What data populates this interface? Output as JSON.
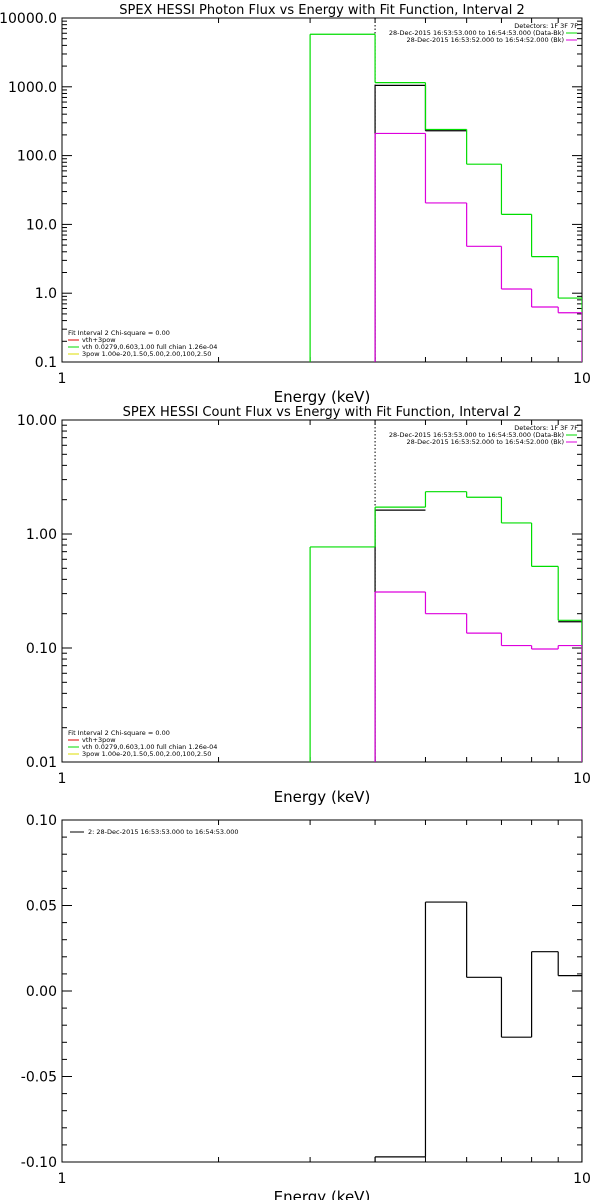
{
  "chart_data": [
    {
      "type": "line",
      "title": "SPEX HESSI Photon Flux vs Energy with Fit Function, Interval 2",
      "xlabel": "Energy (keV)",
      "ylabel": "",
      "x_scale": "log",
      "y_scale": "log",
      "xlim": [
        1,
        10
      ],
      "ylim": [
        0.1,
        10000
      ],
      "xticks": [
        "1",
        "10"
      ],
      "yticks": [
        {
          "value": 0.1,
          "label": "0.1"
        },
        {
          "value": 1,
          "label": "1.0"
        },
        {
          "value": 10,
          "label": "10.0"
        },
        {
          "value": 100,
          "label": "100.0"
        },
        {
          "value": 1000,
          "label": "1000.0"
        },
        {
          "value": 10000,
          "label": "10000.0"
        }
      ],
      "vline": 4.0,
      "legend_topright": [
        "Detectors: 1F 3F 7F",
        "28-Dec-2015 16:53:53.000 to 16:54:53.000 (Data-Bk)",
        "28-Dec-2015 16:53:52.000 to 16:54:52.000 (Bk)"
      ],
      "legend_bottomleft": [
        "Fit Interval 2   Chi-square = 0.00",
        "vth+3pow",
        "vth 0.0279,0.603,1.00  full chian 1.26e-04",
        "3pow 1.00e-20,1.50,5.00,2.00,100,2.50"
      ],
      "series": [
        {
          "color": "#000000",
          "edges": [
            4.0,
            5.0,
            6.0,
            7.0,
            8.0,
            9.0,
            10.0
          ],
          "values": [
            1050,
            230,
            null,
            null,
            null,
            null
          ]
        },
        {
          "color": "#00dd00",
          "edges": [
            3.0,
            4.0,
            5.0,
            6.0,
            7.0,
            8.0,
            9.0,
            10.0
          ],
          "values": [
            5800,
            1150,
            240,
            75,
            14,
            3.4,
            0.85
          ]
        },
        {
          "color": "#dd00dd",
          "edges": [
            4.0,
            5.0,
            6.0,
            7.0,
            8.0,
            9.0,
            10.0
          ],
          "values": [
            210,
            20.5,
            4.8,
            1.15,
            0.63,
            0.52
          ]
        }
      ]
    },
    {
      "type": "line",
      "title": "SPEX HESSI Count Flux vs Energy with Fit Function, Interval 2",
      "xlabel": "Energy (keV)",
      "ylabel": "",
      "x_scale": "log",
      "y_scale": "log",
      "xlim": [
        1,
        10
      ],
      "ylim": [
        0.01,
        10
      ],
      "xticks": [
        "1",
        "10"
      ],
      "yticks": [
        {
          "value": 0.01,
          "label": "0.01"
        },
        {
          "value": 0.1,
          "label": "0.10"
        },
        {
          "value": 1,
          "label": "1.00"
        },
        {
          "value": 10,
          "label": "10.00"
        }
      ],
      "vline": 4.0,
      "legend_topright": [
        "Detectors: 1F 3F 7F",
        "28-Dec-2015 16:53:53.000 to 16:54:53.000 (Data-Bk)",
        "28-Dec-2015 16:53:52.000 to 16:54:52.000 (Bk)"
      ],
      "legend_bottomleft": [
        "Fit Interval 2   Chi-square = 0.00",
        "vth+3pow",
        "vth 0.0279,0.603,1.00  full chian 1.26e-04",
        "3pow 1.00e-20,1.50,5.00,2.00,100,2.50"
      ],
      "series": [
        {
          "color": "#000000",
          "edges": [
            4.0,
            5.0,
            6.0,
            7.0,
            8.0,
            9.0,
            10.0
          ],
          "values": [
            1.62,
            null,
            null,
            null,
            null,
            0.17
          ]
        },
        {
          "color": "#00dd00",
          "edges": [
            3.0,
            4.0,
            5.0,
            6.0,
            7.0,
            8.0,
            9.0,
            10.0
          ],
          "values": [
            0.77,
            1.72,
            2.35,
            2.1,
            1.25,
            0.52,
            0.175
          ]
        },
        {
          "color": "#dd00dd",
          "edges": [
            4.0,
            5.0,
            6.0,
            7.0,
            8.0,
            9.0,
            10.0
          ],
          "values": [
            0.31,
            0.2,
            0.135,
            0.105,
            0.098,
            0.105
          ]
        }
      ]
    },
    {
      "type": "line",
      "title": "",
      "xlabel": "Energy (keV)",
      "ylabel": "",
      "x_scale": "log",
      "y_scale": "linear",
      "xlim": [
        1,
        10
      ],
      "ylim": [
        -0.1,
        0.1
      ],
      "xticks": [
        "1",
        "10"
      ],
      "yticks": [
        {
          "value": -0.1,
          "label": "-0.10"
        },
        {
          "value": -0.05,
          "label": "-0.05"
        },
        {
          "value": 0,
          "label": "0.00"
        },
        {
          "value": 0.05,
          "label": "0.05"
        },
        {
          "value": 0.1,
          "label": "0.10"
        }
      ],
      "legend_topleft": [
        "2: 28-Dec-2015 16:53:53.000 to 16:54:53.000"
      ],
      "series": [
        {
          "color": "#000000",
          "edges": [
            4.0,
            5.0,
            6.0,
            7.0,
            8.0,
            9.0,
            10.0
          ],
          "values": [
            -0.097,
            0.052,
            0.008,
            -0.027,
            0.023,
            0.009
          ]
        }
      ]
    }
  ]
}
